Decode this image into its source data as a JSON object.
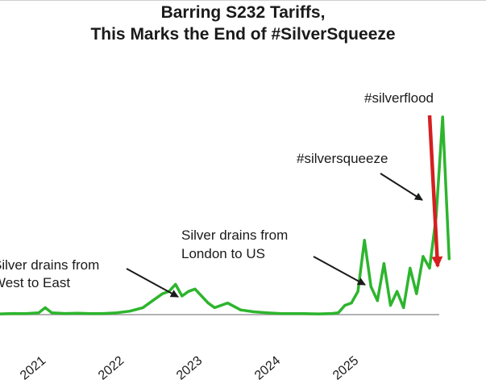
{
  "chart_data": {
    "type": "line",
    "title_lines": [
      "Barring S232 Tariffs,",
      "This Marks the End of #SilverSqueeze"
    ],
    "x_tick_labels": [
      "2021",
      "2022",
      "2023",
      "2024",
      "2025"
    ],
    "annotations": [
      {
        "id": "west-east",
        "lines": [
          "Silver drains from",
          "West to East"
        ]
      },
      {
        "id": "london-us",
        "lines": [
          "Silver drains from",
          "London to US"
        ]
      },
      {
        "id": "silversqueeze",
        "lines": [
          "#silversqueeze"
        ]
      },
      {
        "id": "silverflood",
        "lines": [
          "#silverflood"
        ]
      }
    ],
    "grid": false,
    "legend": "none",
    "series": [
      {
        "color": "#2db52d",
        "x": [
          "2020-07",
          "2020-09",
          "2020-11",
          "2021-01",
          "2021-02",
          "2021-03",
          "2021-05",
          "2021-07",
          "2021-09",
          "2021-11",
          "2022-01",
          "2022-03",
          "2022-05",
          "2022-06",
          "2022-07",
          "2022-08",
          "2022-09",
          "2022-10",
          "2022-11",
          "2022-12",
          "2023-01",
          "2023-02",
          "2023-03",
          "2023-04",
          "2023-06",
          "2023-08",
          "2023-10",
          "2023-12",
          "2024-02",
          "2024-04",
          "2024-06",
          "2024-08",
          "2024-10",
          "2024-11",
          "2024-12",
          "2025-01",
          "2025-02",
          "2025-03",
          "2025-04",
          "2025-05",
          "2025-06",
          "2025-07",
          "2025-08",
          "2025-09",
          "2025-10",
          "2025-11",
          "2025-12",
          "2026-01",
          "2026-02",
          "2026-03",
          "2026-04"
        ],
        "y": [
          0.3,
          0.5,
          0.4,
          0.8,
          3.0,
          0.8,
          0.5,
          0.6,
          0.4,
          0.5,
          0.8,
          1.5,
          3.0,
          5.0,
          7.0,
          9.0,
          10.0,
          13.0,
          8.0,
          10.0,
          11.0,
          8.0,
          5.0,
          3.0,
          5.0,
          2.0,
          1.2,
          0.8,
          0.5,
          0.4,
          0.4,
          0.3,
          0.5,
          0.8,
          4.0,
          5.0,
          10.0,
          32.0,
          12.0,
          6.0,
          22.0,
          4.0,
          10.0,
          3.0,
          20.0,
          9.0,
          25.0,
          20.0,
          42.0,
          85.0,
          24.0
        ],
        "y_scale": "relative"
      }
    ]
  },
  "colors": {
    "line": "#2db52d",
    "baseline": "#9a9a9a",
    "flood_arrow": "#d42020",
    "text": "#1a1a1a"
  }
}
